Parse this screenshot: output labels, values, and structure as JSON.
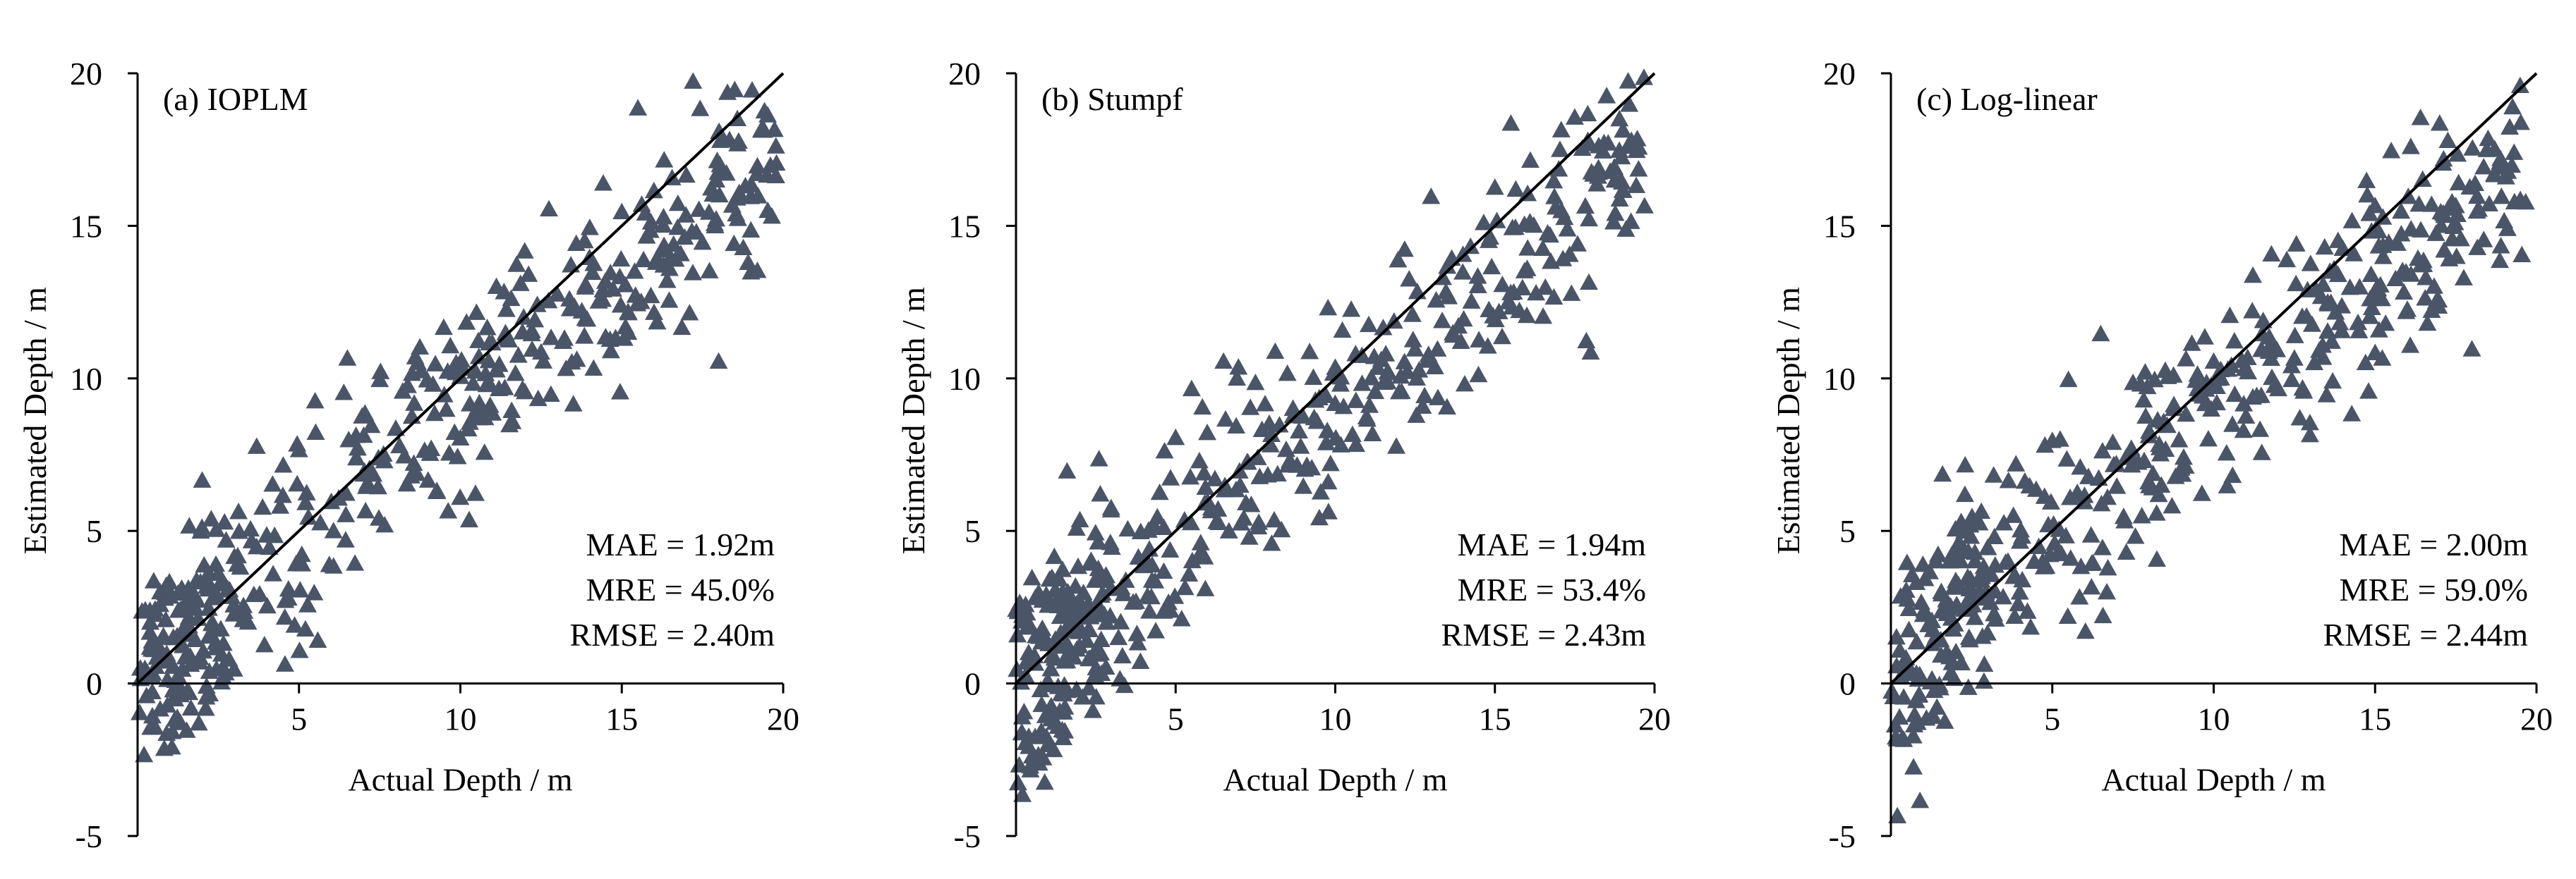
{
  "figure": {
    "marker_color": "#4a5568",
    "line_color": "#000000",
    "axis_color": "#000000"
  },
  "chart_data": [
    {
      "type": "scatter",
      "panel_label": "(a) IOPLM",
      "xlabel": "Actual Depth / m",
      "ylabel": "Estimated Depth / m",
      "xlim": [
        0,
        20
      ],
      "ylim": [
        -5,
        20
      ],
      "xticks": [
        "5",
        "10",
        "15",
        "20"
      ],
      "yticks": [
        "-5",
        "0",
        "5",
        "10",
        "15",
        "20"
      ],
      "reference_line": "1:1",
      "stats": [
        "MAE = 1.92m",
        "MRE = 45.0%",
        "RMSE = 2.40m"
      ],
      "seed": 11,
      "noise": 2.3,
      "scale": 0.88,
      "offset": 0.3,
      "x": [
        0.2,
        0.3,
        0.4,
        0.5,
        0.6,
        0.7,
        0.8,
        0.9,
        1.0,
        1.1,
        1.2,
        1.4,
        1.6,
        1.8,
        2.0,
        2.3,
        2.6,
        3.0,
        3.5,
        4.0,
        4.5,
        5.0,
        5.5,
        6.0,
        6.5,
        7.0,
        7.5,
        8.0,
        8.5,
        9.0,
        9.5,
        10.0,
        10.5,
        11.0,
        11.5,
        12.0,
        12.5,
        13.0,
        13.5,
        14.0,
        14.5,
        15.0,
        15.5,
        16.0,
        16.5,
        17.0,
        17.5,
        18.0,
        18.5,
        19.0,
        19.5
      ],
      "y": [
        -2.4,
        0.3,
        -1.5,
        3.3,
        0.8,
        -0.9,
        1.5,
        -1.7,
        2.8,
        0.5,
        -0.4,
        1.7,
        5.1,
        2.4,
        6.6,
        1.9,
        0.9,
        4.1,
        5.0,
        4.8,
        6.1,
        7.6,
        9.2,
        5.9,
        10.6,
        6.8,
        9.9,
        8.3,
        10.1,
        6.6,
        9.4,
        10.0,
        12.1,
        8.8,
        11.2,
        9.5,
        10.8,
        12.7,
        9.1,
        13.9,
        11.3,
        15.4,
        18.8,
        12.1,
        13.9,
        16.6,
        14.4,
        10.5,
        19.4,
        14.8,
        16.6
      ]
    },
    {
      "type": "scatter",
      "panel_label": "(b) Stumpf",
      "xlabel": "Actual Depth / m",
      "ylabel": "Estimated Depth / m",
      "xlim": [
        0,
        20
      ],
      "ylim": [
        -5,
        20
      ],
      "xticks": [
        "5",
        "10",
        "15",
        "20"
      ],
      "yticks": [
        "-5",
        "0",
        "5",
        "10",
        "15",
        "20"
      ],
      "reference_line": "1:1",
      "stats": [
        "MAE = 1.94m",
        "MRE = 53.4%",
        "RMSE = 2.43m"
      ],
      "seed": 23,
      "noise": 2.3,
      "scale": 0.87,
      "offset": 0.2,
      "x": [
        0.2,
        0.3,
        0.4,
        0.5,
        0.6,
        0.7,
        0.8,
        0.9,
        1.0,
        1.1,
        1.2,
        1.4,
        1.6,
        1.8,
        2.0,
        2.3,
        2.6,
        3.0,
        3.5,
        4.0,
        4.5,
        5.0,
        5.5,
        6.0,
        6.5,
        7.0,
        7.5,
        8.0,
        8.5,
        9.0,
        9.5,
        10.0,
        10.5,
        11.0,
        11.5,
        12.0,
        12.5,
        13.0,
        13.5,
        14.0,
        14.5,
        15.0,
        15.5,
        16.0,
        16.5,
        17.0,
        17.5,
        18.0,
        18.5,
        19.0,
        19.5
      ],
      "y": [
        -3.7,
        0.2,
        -1.8,
        3.4,
        0.6,
        -2.4,
        1.3,
        -3.3,
        2.5,
        -0.8,
        4.1,
        1.6,
        6.9,
        2.2,
        5.3,
        1.7,
        7.3,
        4.4,
        5.0,
        3.8,
        6.2,
        8.0,
        9.6,
        5.9,
        10.5,
        6.9,
        9.8,
        8.1,
        10.1,
        6.4,
        9.3,
        10.3,
        12.2,
        8.6,
        11.6,
        9.5,
        10.9,
        15.9,
        9.0,
        14.0,
        11.2,
        16.2,
        18.3,
        12.0,
        14.2,
        16.8,
        18.5,
        10.8,
        19.2,
        16.1,
        16.8
      ]
    },
    {
      "type": "scatter",
      "panel_label": "(c) Log-linear",
      "xlabel": "Actual Depth / m",
      "ylabel": "Estimated Depth / m",
      "xlim": [
        0,
        20
      ],
      "ylim": [
        -5,
        20
      ],
      "xticks": [
        "5",
        "10",
        "15",
        "20"
      ],
      "yticks": [
        "-5",
        "0",
        "5",
        "10",
        "15",
        "20"
      ],
      "reference_line": "1:1",
      "stats": [
        "MAE = 2.00m",
        "MRE = 59.0%",
        "RMSE = 2.44m"
      ],
      "seed": 37,
      "noise": 2.2,
      "scale": 0.85,
      "offset": 0.6,
      "x": [
        0.2,
        0.3,
        0.4,
        0.5,
        0.6,
        0.7,
        0.8,
        0.9,
        1.0,
        1.1,
        1.2,
        1.4,
        1.6,
        1.8,
        2.0,
        2.3,
        2.6,
        3.0,
        3.5,
        4.0,
        4.5,
        5.0,
        5.5,
        6.0,
        6.5,
        7.0,
        7.5,
        8.0,
        8.5,
        9.0,
        9.5,
        10.0,
        10.5,
        11.0,
        11.5,
        12.0,
        12.5,
        13.0,
        13.5,
        14.0,
        14.5,
        15.0,
        15.5,
        16.0,
        16.5,
        17.0,
        17.5,
        18.0,
        18.5,
        19.0,
        19.5
      ],
      "y": [
        -4.4,
        2.8,
        -1.9,
        3.9,
        0.4,
        -2.8,
        1.3,
        -3.9,
        2.2,
        -1.2,
        3.6,
        1.5,
        6.8,
        2.4,
        5.0,
        7.1,
        2.1,
        4.4,
        5.2,
        4.6,
        6.3,
        7.9,
        9.9,
        6.1,
        11.4,
        6.4,
        9.8,
        8.2,
        10.2,
        7.0,
        9.6,
        10.5,
        12.0,
        8.7,
        11.4,
        9.6,
        10.6,
        13.7,
        9.4,
        14.2,
        11.5,
        15.6,
        17.4,
        12.2,
        13.8,
        18.3,
        15.6,
        10.9,
        17.8,
        15.1,
        15.8
      ]
    }
  ]
}
